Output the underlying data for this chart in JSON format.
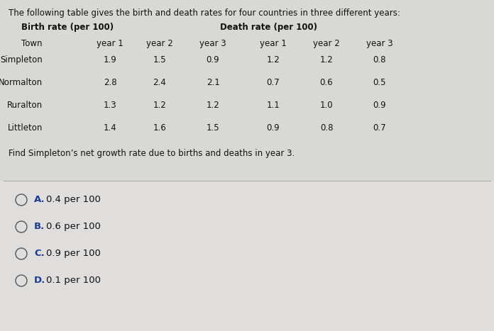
{
  "title": "The following table gives the birth and death rates for four countries in three different years:",
  "section_headers": [
    "Birth rate (per 100)",
    "Death rate (per 100)"
  ],
  "col_header": [
    "Town",
    "year 1",
    "year 2",
    "year 3",
    "year 1",
    "year 2",
    "year 3"
  ],
  "rows": [
    [
      "Simpleton",
      "1.9",
      "1.5",
      "0.9",
      "1.2",
      "1.2",
      "0.8"
    ],
    [
      "Normalton",
      "2.8",
      "2.4",
      "2.1",
      "0.7",
      "0.6",
      "0.5"
    ],
    [
      "Ruralton",
      "1.3",
      "1.2",
      "1.2",
      "1.1",
      "1.0",
      "0.9"
    ],
    [
      "Littleton",
      "1.4",
      "1.6",
      "1.5",
      "0.9",
      "0.8",
      "0.7"
    ]
  ],
  "question": "Find Simpleton’s net growth rate due to births and deaths in year 3.",
  "choices": [
    [
      "A.",
      "0.4 per 100"
    ],
    [
      "B.",
      "0.6 per 100"
    ],
    [
      "C.",
      "0.9 per 100"
    ],
    [
      "D.",
      "0.1 per 100"
    ]
  ],
  "top_bg_color": "#d8d8d5",
  "bottom_bg_color": "#e0dedd",
  "text_color": "#111111",
  "choice_letter_color": "#1a3a9a",
  "title_fontsize": 8.5,
  "header_fontsize": 8.5,
  "data_fontsize": 8.5,
  "choice_fontsize": 9.5
}
